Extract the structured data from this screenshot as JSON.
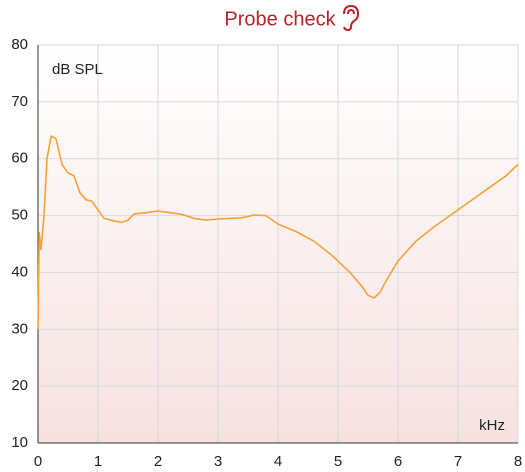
{
  "chart_data": {
    "type": "line",
    "title": "Probe check",
    "ylabel": "dB SPL",
    "xlabel": "kHz",
    "color": "#f7a13b",
    "grid": true,
    "xlim": [
      0,
      8
    ],
    "xticks": [
      0,
      1,
      2,
      3,
      4,
      5,
      6,
      7,
      8
    ],
    "ylim": [
      10,
      80
    ],
    "yticks": [
      10,
      20,
      30,
      40,
      50,
      60,
      70,
      80
    ],
    "x": [
      0,
      0.02,
      0.05,
      0.1,
      0.15,
      0.22,
      0.3,
      0.4,
      0.5,
      0.6,
      0.7,
      0.8,
      0.9,
      1.0,
      1.1,
      1.3,
      1.4,
      1.5,
      1.6,
      1.8,
      2.0,
      2.2,
      2.4,
      2.6,
      2.8,
      3.0,
      3.2,
      3.4,
      3.6,
      3.8,
      4.0,
      4.3,
      4.6,
      4.9,
      5.2,
      5.4,
      5.5,
      5.6,
      5.7,
      5.8,
      6.0,
      6.3,
      6.6,
      7.0,
      7.4,
      7.8,
      8.0
    ],
    "values": [
      30,
      47,
      44,
      50,
      60,
      64,
      63.5,
      59,
      57.5,
      57,
      54,
      52.8,
      52.5,
      51,
      49.5,
      49,
      48.8,
      49.2,
      50.3,
      50.5,
      50.8,
      50.5,
      50.2,
      49.5,
      49.2,
      49.4,
      49.5,
      49.6,
      50.1,
      50,
      48.5,
      47.2,
      45.5,
      43,
      40,
      37.5,
      36,
      35.5,
      36.5,
      38.5,
      42,
      45.5,
      48,
      51,
      54,
      57,
      59
    ]
  }
}
